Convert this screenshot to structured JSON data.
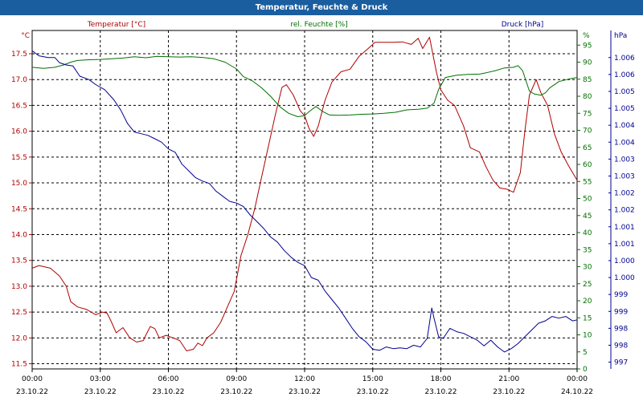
{
  "window": {
    "title": "Temperatur, Feuchte & Druck"
  },
  "chart_data": {
    "type": "line",
    "title": "Temperatur, Feuchte & Druck",
    "x": {
      "range_hours": [
        0,
        24
      ],
      "ticks": [
        {
          "h": 0,
          "time": "00:00",
          "date": "23.10.22"
        },
        {
          "h": 3,
          "time": "03:00",
          "date": "23.10.22"
        },
        {
          "h": 6,
          "time": "06:00",
          "date": "23.10.22"
        },
        {
          "h": 9,
          "time": "09:00",
          "date": "23.10.22"
        },
        {
          "h": 12,
          "time": "12:00",
          "date": "23.10.22"
        },
        {
          "h": 15,
          "time": "15:00",
          "date": "23.10.22"
        },
        {
          "h": 18,
          "time": "18:00",
          "date": "23.10.22"
        },
        {
          "h": 21,
          "time": "21:00",
          "date": "23.10.22"
        },
        {
          "h": 24,
          "time": "00:00",
          "date": "24.10.22"
        }
      ]
    },
    "axes": {
      "temperature": {
        "label": "Temperatur [°C]",
        "unit": "°C",
        "color": "#b00000",
        "range": [
          11.4,
          17.95
        ],
        "ticks": [
          {
            "v": 11.5,
            "label": "11.5"
          },
          {
            "v": 12.0,
            "label": "12.0"
          },
          {
            "v": 12.5,
            "label": "12.5"
          },
          {
            "v": 13.0,
            "label": "13.0"
          },
          {
            "v": 13.5,
            "label": "13.5"
          },
          {
            "v": 14.0,
            "label": "14.0"
          },
          {
            "v": 14.5,
            "label": "14.5"
          },
          {
            "v": 15.0,
            "label": "15.0"
          },
          {
            "v": 15.5,
            "label": "15.5"
          },
          {
            "v": 16.0,
            "label": "16.0"
          },
          {
            "v": 16.5,
            "label": "16.5"
          },
          {
            "v": 17.0,
            "label": "17.0"
          },
          {
            "v": 17.5,
            "label": "17.5"
          }
        ]
      },
      "humidity": {
        "label": "rel. Feuchte [%]",
        "unit": "%",
        "color": "#007000",
        "range": [
          0,
          99.3
        ],
        "ticks": [
          {
            "v": 0,
            "label": "0"
          },
          {
            "v": 5,
            "label": "5"
          },
          {
            "v": 10,
            "label": "10"
          },
          {
            "v": 15,
            "label": "15"
          },
          {
            "v": 20,
            "label": "20"
          },
          {
            "v": 25,
            "label": "25"
          },
          {
            "v": 30,
            "label": "30"
          },
          {
            "v": 35,
            "label": "35"
          },
          {
            "v": 40,
            "label": "40"
          },
          {
            "v": 45,
            "label": "45"
          },
          {
            "v": 50,
            "label": "50"
          },
          {
            "v": 55,
            "label": "55"
          },
          {
            "v": 60,
            "label": "60"
          },
          {
            "v": 65,
            "label": "65"
          },
          {
            "v": 70,
            "label": "70"
          },
          {
            "v": 75,
            "label": "75"
          },
          {
            "v": 80,
            "label": "80"
          },
          {
            "v": 85,
            "label": "85"
          },
          {
            "v": 90,
            "label": "90"
          },
          {
            "v": 95,
            "label": "95"
          }
        ]
      },
      "pressure": {
        "label": "Druck [hPa]",
        "unit": "hPa",
        "color": "#000090",
        "range": [
          996.8,
          1006.8
        ],
        "ticks": [
          {
            "v": 997.0,
            "label": "997"
          },
          {
            "v": 997.5,
            "label": "998"
          },
          {
            "v": 998.0,
            "label": "998"
          },
          {
            "v": 998.5,
            "label": "999"
          },
          {
            "v": 999.0,
            "label": "999"
          },
          {
            "v": 999.5,
            "label": "1.000"
          },
          {
            "v": 1000.0,
            "label": "1.000"
          },
          {
            "v": 1000.5,
            "label": "1.001"
          },
          {
            "v": 1001.0,
            "label": "1.001"
          },
          {
            "v": 1001.5,
            "label": "1.002"
          },
          {
            "v": 1002.0,
            "label": "1.002"
          },
          {
            "v": 1002.5,
            "label": "1.003"
          },
          {
            "v": 1003.0,
            "label": "1.003"
          },
          {
            "v": 1003.5,
            "label": "1.004"
          },
          {
            "v": 1004.0,
            "label": "1.004"
          },
          {
            "v": 1004.5,
            "label": "1.005"
          },
          {
            "v": 1005.0,
            "label": "1.005"
          },
          {
            "v": 1005.5,
            "label": "1.006"
          },
          {
            "v": 1006.0,
            "label": "1.006"
          }
        ]
      }
    },
    "series": [
      {
        "name": "Temperatur [°C]",
        "axis": "temperature",
        "color": "#b00000",
        "points": [
          [
            0,
            13.35
          ],
          [
            0.3,
            13.4
          ],
          [
            0.8,
            13.35
          ],
          [
            1.2,
            13.2
          ],
          [
            1.5,
            13.0
          ],
          [
            1.7,
            12.7
          ],
          [
            2.0,
            12.6
          ],
          [
            2.4,
            12.55
          ],
          [
            2.8,
            12.45
          ],
          [
            3.1,
            12.5
          ],
          [
            3.3,
            12.48
          ],
          [
            3.5,
            12.3
          ],
          [
            3.7,
            12.1
          ],
          [
            4.0,
            12.2
          ],
          [
            4.3,
            12.0
          ],
          [
            4.6,
            11.92
          ],
          [
            4.9,
            11.95
          ],
          [
            5.0,
            12.05
          ],
          [
            5.2,
            12.22
          ],
          [
            5.4,
            12.18
          ],
          [
            5.6,
            12.0
          ],
          [
            5.9,
            12.05
          ],
          [
            6.2,
            12.0
          ],
          [
            6.5,
            11.95
          ],
          [
            6.8,
            11.75
          ],
          [
            7.1,
            11.78
          ],
          [
            7.3,
            11.9
          ],
          [
            7.5,
            11.85
          ],
          [
            7.7,
            12.0
          ],
          [
            8.0,
            12.1
          ],
          [
            8.3,
            12.3
          ],
          [
            8.6,
            12.6
          ],
          [
            8.9,
            12.9
          ],
          [
            9.2,
            13.6
          ],
          [
            9.5,
            14.0
          ],
          [
            9.8,
            14.5
          ],
          [
            10.1,
            15.1
          ],
          [
            10.4,
            15.7
          ],
          [
            10.7,
            16.3
          ],
          [
            11.0,
            16.85
          ],
          [
            11.2,
            16.9
          ],
          [
            11.5,
            16.7
          ],
          [
            11.8,
            16.4
          ],
          [
            12.0,
            16.3
          ],
          [
            12.2,
            16.05
          ],
          [
            12.4,
            15.9
          ],
          [
            12.6,
            16.1
          ],
          [
            12.9,
            16.6
          ],
          [
            13.2,
            16.95
          ],
          [
            13.6,
            17.15
          ],
          [
            14.0,
            17.2
          ],
          [
            14.4,
            17.45
          ],
          [
            14.8,
            17.6
          ],
          [
            15.1,
            17.72
          ],
          [
            15.5,
            17.72
          ],
          [
            15.9,
            17.72
          ],
          [
            16.3,
            17.73
          ],
          [
            16.7,
            17.68
          ],
          [
            17.0,
            17.8
          ],
          [
            17.2,
            17.6
          ],
          [
            17.5,
            17.82
          ],
          [
            17.8,
            17.15
          ],
          [
            18.0,
            16.8
          ],
          [
            18.3,
            16.6
          ],
          [
            18.6,
            16.5
          ],
          [
            19.0,
            16.1
          ],
          [
            19.3,
            15.68
          ],
          [
            19.7,
            15.6
          ],
          [
            20.0,
            15.3
          ],
          [
            20.3,
            15.05
          ],
          [
            20.6,
            14.9
          ],
          [
            20.9,
            14.88
          ],
          [
            21.2,
            14.82
          ],
          [
            21.5,
            15.2
          ],
          [
            21.7,
            16.0
          ],
          [
            21.9,
            16.7
          ],
          [
            22.2,
            17.0
          ],
          [
            22.4,
            16.75
          ],
          [
            22.7,
            16.5
          ],
          [
            23.0,
            15.95
          ],
          [
            23.3,
            15.6
          ],
          [
            23.6,
            15.35
          ],
          [
            24.0,
            15.05
          ]
        ]
      },
      {
        "name": "rel. Feuchte [%]",
        "axis": "humidity",
        "color": "#007000",
        "points": [
          [
            0,
            88.5
          ],
          [
            0.5,
            88.2
          ],
          [
            1.0,
            88.5
          ],
          [
            1.4,
            89.2
          ],
          [
            1.7,
            90.0
          ],
          [
            2.0,
            90.5
          ],
          [
            2.5,
            90.7
          ],
          [
            3.0,
            90.8
          ],
          [
            3.5,
            91.0
          ],
          [
            4.0,
            91.2
          ],
          [
            4.5,
            91.6
          ],
          [
            5.0,
            91.3
          ],
          [
            5.5,
            91.7
          ],
          [
            6.0,
            91.6
          ],
          [
            6.5,
            91.5
          ],
          [
            7.0,
            91.6
          ],
          [
            7.5,
            91.4
          ],
          [
            8.0,
            91.0
          ],
          [
            8.5,
            90.0
          ],
          [
            9.0,
            88.0
          ],
          [
            9.3,
            85.8
          ],
          [
            9.7,
            84.5
          ],
          [
            10.1,
            82.5
          ],
          [
            10.5,
            80.0
          ],
          [
            10.9,
            77.0
          ],
          [
            11.3,
            75.0
          ],
          [
            11.7,
            74.0
          ],
          [
            12.0,
            74.3
          ],
          [
            12.2,
            75.5
          ],
          [
            12.5,
            77.0
          ],
          [
            12.8,
            75.5
          ],
          [
            13.1,
            74.5
          ],
          [
            13.5,
            74.4
          ],
          [
            14.0,
            74.5
          ],
          [
            14.5,
            74.7
          ],
          [
            15.0,
            74.8
          ],
          [
            15.5,
            75.0
          ],
          [
            16.0,
            75.3
          ],
          [
            16.5,
            76.0
          ],
          [
            17.0,
            76.2
          ],
          [
            17.4,
            76.5
          ],
          [
            17.7,
            78.0
          ],
          [
            17.9,
            82.0
          ],
          [
            18.2,
            85.5
          ],
          [
            18.7,
            86.2
          ],
          [
            19.2,
            86.4
          ],
          [
            19.7,
            86.5
          ],
          [
            20.0,
            86.9
          ],
          [
            20.4,
            87.5
          ],
          [
            20.8,
            88.3
          ],
          [
            21.2,
            88.5
          ],
          [
            21.4,
            89.0
          ],
          [
            21.6,
            87.5
          ],
          [
            21.9,
            81.5
          ],
          [
            22.1,
            80.7
          ],
          [
            22.4,
            80.3
          ],
          [
            22.6,
            81.0
          ],
          [
            22.8,
            82.5
          ],
          [
            23.2,
            84.3
          ],
          [
            23.6,
            85.0
          ],
          [
            24.0,
            85.5
          ]
        ]
      },
      {
        "name": "Druck [hPa]",
        "axis": "pressure",
        "color": "#000090",
        "points": [
          [
            0,
            1006.2
          ],
          [
            0.3,
            1006.05
          ],
          [
            0.7,
            1006.0
          ],
          [
            1.0,
            1006.0
          ],
          [
            1.2,
            1005.85
          ],
          [
            1.5,
            1005.78
          ],
          [
            1.8,
            1005.75
          ],
          [
            2.1,
            1005.45
          ],
          [
            2.5,
            1005.35
          ],
          [
            2.8,
            1005.2
          ],
          [
            3.2,
            1005.05
          ],
          [
            3.6,
            1004.75
          ],
          [
            3.9,
            1004.45
          ],
          [
            4.2,
            1004.05
          ],
          [
            4.5,
            1003.8
          ],
          [
            4.8,
            1003.75
          ],
          [
            5.1,
            1003.7
          ],
          [
            5.4,
            1003.6
          ],
          [
            5.7,
            1003.5
          ],
          [
            6.0,
            1003.3
          ],
          [
            6.3,
            1003.2
          ],
          [
            6.6,
            1002.85
          ],
          [
            6.9,
            1002.65
          ],
          [
            7.2,
            1002.45
          ],
          [
            7.5,
            1002.35
          ],
          [
            7.8,
            1002.28
          ],
          [
            8.1,
            1002.05
          ],
          [
            8.4,
            1001.9
          ],
          [
            8.7,
            1001.75
          ],
          [
            9.0,
            1001.7
          ],
          [
            9.3,
            1001.6
          ],
          [
            9.6,
            1001.35
          ],
          [
            9.9,
            1001.15
          ],
          [
            10.2,
            1000.95
          ],
          [
            10.5,
            1000.7
          ],
          [
            10.8,
            1000.55
          ],
          [
            11.1,
            1000.3
          ],
          [
            11.4,
            1000.1
          ],
          [
            11.7,
            999.95
          ],
          [
            12.0,
            999.85
          ],
          [
            12.3,
            999.5
          ],
          [
            12.6,
            999.42
          ],
          [
            12.9,
            999.1
          ],
          [
            13.2,
            998.85
          ],
          [
            13.5,
            998.6
          ],
          [
            13.8,
            998.3
          ],
          [
            14.1,
            998.0
          ],
          [
            14.4,
            997.75
          ],
          [
            14.7,
            997.6
          ],
          [
            15.0,
            997.38
          ],
          [
            15.3,
            997.35
          ],
          [
            15.6,
            997.45
          ],
          [
            15.9,
            997.4
          ],
          [
            16.2,
            997.42
          ],
          [
            16.5,
            997.4
          ],
          [
            16.8,
            997.5
          ],
          [
            17.1,
            997.45
          ],
          [
            17.4,
            997.7
          ],
          [
            17.6,
            998.6
          ],
          [
            17.7,
            998.3
          ],
          [
            17.9,
            997.75
          ],
          [
            18.1,
            997.7
          ],
          [
            18.4,
            998.0
          ],
          [
            18.7,
            997.9
          ],
          [
            19.0,
            997.85
          ],
          [
            19.3,
            997.75
          ],
          [
            19.6,
            997.65
          ],
          [
            19.9,
            997.48
          ],
          [
            20.2,
            997.65
          ],
          [
            20.5,
            997.45
          ],
          [
            20.8,
            997.3
          ],
          [
            21.1,
            997.4
          ],
          [
            21.4,
            997.55
          ],
          [
            21.7,
            997.75
          ],
          [
            22.0,
            997.95
          ],
          [
            22.3,
            998.15
          ],
          [
            22.6,
            998.22
          ],
          [
            22.9,
            998.35
          ],
          [
            23.2,
            998.3
          ],
          [
            23.5,
            998.35
          ],
          [
            23.8,
            998.22
          ],
          [
            24.0,
            998.25
          ]
        ]
      }
    ]
  }
}
